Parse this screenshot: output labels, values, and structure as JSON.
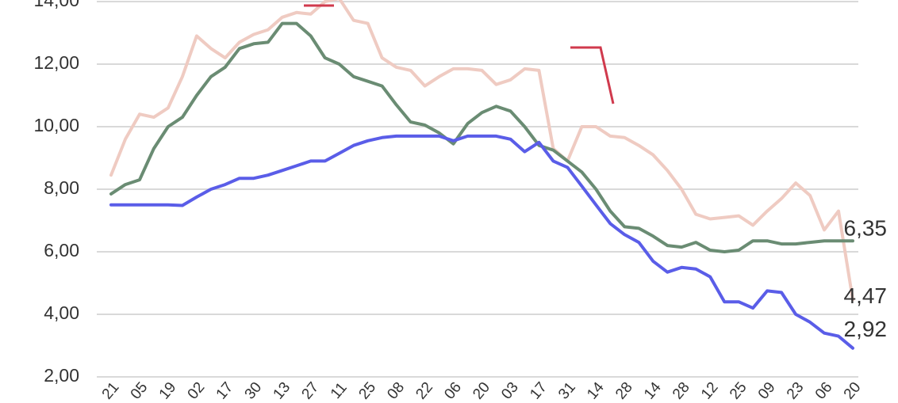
{
  "chart_data": {
    "type": "line",
    "categories": [
      "21",
      null,
      "05",
      null,
      "19",
      null,
      "02",
      null,
      "17",
      null,
      "30",
      null,
      "13",
      null,
      "27",
      null,
      "11",
      null,
      "25",
      null,
      "08",
      null,
      "22",
      null,
      "06",
      null,
      "20",
      null,
      "03",
      null,
      "17",
      null,
      "31",
      null,
      "14",
      null,
      "28",
      null,
      "14",
      null,
      "28",
      null,
      "12",
      null,
      "25",
      null,
      "09",
      null,
      "23",
      null,
      "06",
      null,
      "20"
    ],
    "series": [
      {
        "color": "#efcbc2",
        "values": [
          8.45,
          9.6,
          10.4,
          10.3,
          10.6,
          11.6,
          12.9,
          12.5,
          12.2,
          12.7,
          12.95,
          13.1,
          13.5,
          13.65,
          13.6,
          14.0,
          14.1,
          13.4,
          13.3,
          12.2,
          11.9,
          11.8,
          11.3,
          11.6,
          11.85,
          11.85,
          11.8,
          11.35,
          11.5,
          11.85,
          11.8,
          9.3,
          8.9,
          10.0,
          10.0,
          9.7,
          9.65,
          9.4,
          9.1,
          8.6,
          8.0,
          7.2,
          7.05,
          7.1,
          7.15,
          6.85,
          7.3,
          7.7,
          8.2,
          7.8,
          6.7,
          7.3,
          4.47
        ],
        "value_labels": [
          null,
          null,
          null,
          null,
          null,
          null,
          null,
          null,
          null,
          null,
          null,
          null,
          null,
          null,
          null,
          null,
          null,
          null,
          null,
          null,
          null,
          null,
          null,
          null,
          null,
          null,
          null,
          null,
          null,
          null,
          null,
          null,
          null,
          null,
          null,
          null,
          null,
          null,
          null,
          null,
          null,
          null,
          null,
          null,
          null,
          null,
          null,
          null,
          null,
          null,
          null,
          null,
          "4,47"
        ]
      },
      {
        "color": "#6a8c73",
        "values": [
          7.85,
          8.15,
          8.3,
          9.3,
          10.0,
          10.3,
          11.0,
          11.6,
          11.9,
          12.5,
          12.65,
          12.7,
          13.3,
          13.3,
          12.9,
          12.2,
          12.0,
          11.6,
          11.45,
          11.3,
          10.7,
          10.15,
          10.05,
          9.8,
          9.45,
          10.1,
          10.45,
          10.65,
          10.5,
          10.0,
          9.4,
          9.25,
          8.9,
          8.55,
          8.0,
          7.3,
          6.8,
          6.75,
          6.5,
          6.2,
          6.15,
          6.3,
          6.05,
          6.0,
          6.05,
          6.35,
          6.35,
          6.25,
          6.25,
          6.3,
          6.35,
          6.35,
          6.35
        ],
        "value_labels": [
          null,
          null,
          null,
          null,
          null,
          null,
          null,
          null,
          null,
          null,
          null,
          null,
          null,
          null,
          null,
          null,
          null,
          null,
          null,
          null,
          null,
          null,
          null,
          null,
          null,
          null,
          null,
          null,
          null,
          null,
          null,
          null,
          null,
          null,
          null,
          null,
          null,
          null,
          null,
          null,
          null,
          null,
          null,
          null,
          null,
          null,
          null,
          null,
          null,
          null,
          null,
          null,
          "6,35"
        ]
      },
      {
        "color": "#5a5de8",
        "values": [
          7.5,
          7.5,
          7.5,
          7.5,
          7.5,
          7.48,
          7.75,
          8.0,
          8.15,
          8.35,
          8.35,
          8.45,
          8.6,
          8.75,
          8.9,
          8.9,
          9.15,
          9.4,
          9.55,
          9.65,
          9.7,
          9.7,
          9.7,
          9.7,
          9.55,
          9.7,
          9.7,
          9.7,
          9.6,
          9.2,
          9.5,
          8.9,
          8.7,
          8.1,
          7.5,
          6.9,
          6.55,
          6.3,
          5.7,
          5.35,
          5.5,
          5.45,
          5.2,
          4.4,
          4.4,
          4.2,
          4.75,
          4.7,
          4.0,
          3.75,
          3.4,
          3.3,
          2.92
        ],
        "value_labels": [
          null,
          null,
          null,
          null,
          null,
          null,
          null,
          null,
          null,
          null,
          null,
          null,
          null,
          null,
          null,
          null,
          null,
          null,
          null,
          null,
          null,
          null,
          null,
          null,
          null,
          null,
          null,
          null,
          null,
          null,
          null,
          null,
          null,
          null,
          null,
          null,
          null,
          null,
          null,
          null,
          null,
          null,
          null,
          null,
          null,
          null,
          null,
          null,
          null,
          null,
          null,
          null,
          "2,92"
        ]
      }
    ],
    "ylim": [
      2,
      14
    ],
    "yticks": [
      {
        "value": 2,
        "label": "2,00"
      },
      {
        "value": 4,
        "label": "4,00"
      },
      {
        "value": 6,
        "label": "6,00"
      },
      {
        "value": 8,
        "label": "8,00"
      },
      {
        "value": 10,
        "label": "10,00"
      },
      {
        "value": 12,
        "label": "12,00"
      },
      {
        "value": 14,
        "label": "14,00"
      }
    ],
    "grid": true
  }
}
